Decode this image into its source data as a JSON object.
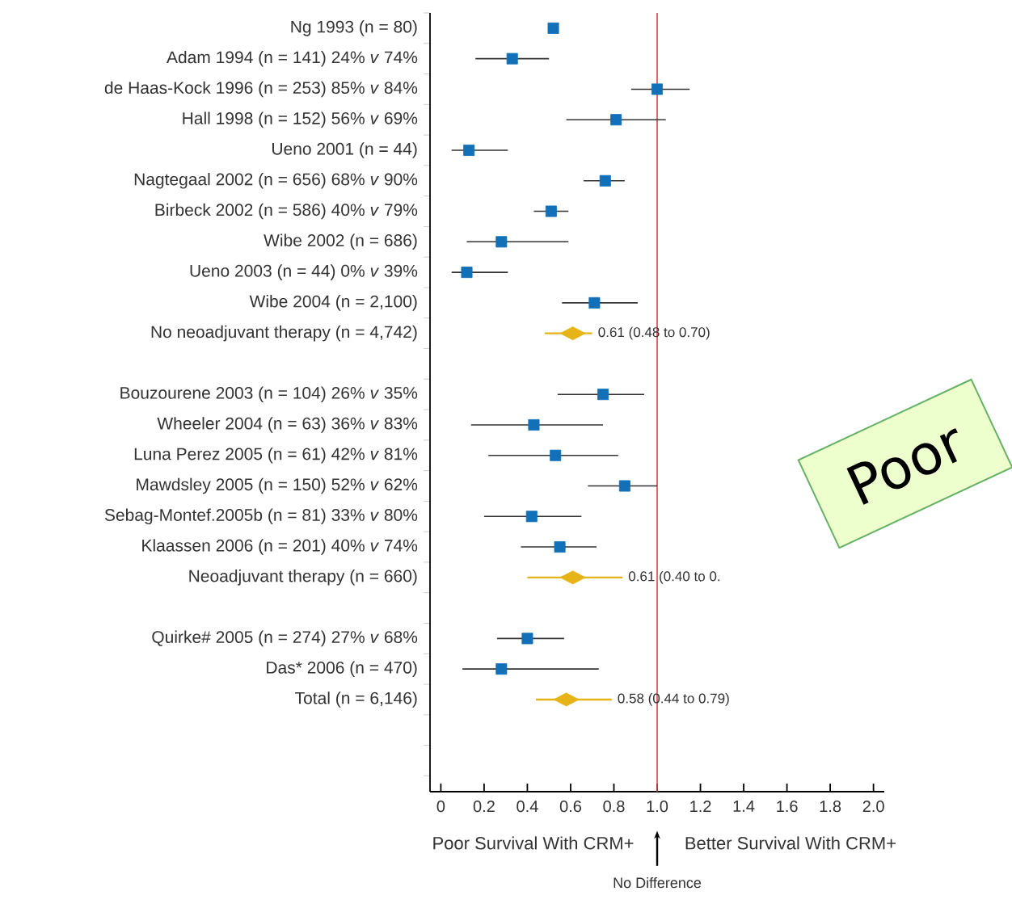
{
  "chart_data": {
    "type": "scatter",
    "orientation": "horizontal",
    "categories": [
      "Ng 1993 (n = 80)",
      "Adam 1994 (n = 141) 24% *v* 74%",
      "de Haas-Kock 1996 (n = 253) 85% *v* 84%",
      "Hall 1998 (n = 152) 56% *v* 69%",
      "Ueno 2001 (n = 44)",
      "Nagtegaal 2002 (n = 656) 68% *v* 90%",
      "Birbeck 2002 (n = 586) 40% *v* 79%",
      "Wibe 2002 (n = 686)",
      "Ueno 2003 (n = 44) 0% *v* 39%",
      "Wibe 2004 (n = 2,100)",
      "No neoadjuvant therapy (n = 4,742)",
      null,
      "Bouzourene 2003 (n = 104) 26% *v* 35%",
      "Wheeler 2004 (n = 63) 36% *v* 83%",
      "Luna Perez 2005 (n = 61) 42% *v* 81%",
      "Mawdsley 2005 (n = 150) 52% *v* 62%",
      "Sebag-Montef.2005b (n = 81) 33% *v* 80%",
      "Klaassen 2006 (n = 201) 40% *v* 74%",
      "Neoadjuvant therapy (n = 660)",
      null,
      "Quirke# 2005 (n = 274) 27% *v* 68%",
      "Das* 2006 (n = 470)",
      "Total (n = 6,146)",
      null,
      null
    ],
    "series": [
      {
        "marker": "square",
        "color": "#1170b8",
        "values": [
          0.52,
          0.33,
          1.0,
          0.81,
          0.13,
          0.76,
          0.51,
          0.28,
          0.12,
          0.71,
          null,
          null,
          0.75,
          0.43,
          0.53,
          0.85,
          0.42,
          0.55,
          null,
          null,
          0.4,
          0.28,
          null,
          null,
          null
        ],
        "errors": [
          null,
          [
            0.16,
            0.5
          ],
          [
            0.88,
            1.15
          ],
          [
            0.58,
            1.04
          ],
          [
            0.05,
            0.31
          ],
          [
            0.66,
            0.85
          ],
          [
            0.43,
            0.59
          ],
          [
            0.12,
            0.59
          ],
          [
            0.05,
            0.31
          ],
          [
            0.56,
            0.91
          ],
          null,
          null,
          [
            0.54,
            0.94
          ],
          [
            0.14,
            0.75
          ],
          [
            0.22,
            0.82
          ],
          [
            0.68,
            1.0
          ],
          [
            0.2,
            0.65
          ],
          [
            0.37,
            0.72
          ],
          null,
          null,
          [
            0.26,
            0.57
          ],
          [
            0.1,
            0.73
          ],
          null,
          null,
          null
        ]
      },
      {
        "marker": "diamond",
        "color": "#e6b416",
        "values": [
          null,
          null,
          null,
          null,
          null,
          null,
          null,
          null,
          null,
          null,
          0.61,
          null,
          null,
          null,
          null,
          null,
          null,
          null,
          0.61,
          null,
          null,
          null,
          0.58,
          null,
          null
        ],
        "errors": [
          null,
          null,
          null,
          null,
          null,
          null,
          null,
          null,
          null,
          null,
          [
            0.48,
            0.7
          ],
          null,
          null,
          null,
          null,
          null,
          null,
          null,
          [
            0.4,
            0.84
          ],
          null,
          null,
          null,
          [
            0.44,
            0.79
          ],
          null,
          null
        ],
        "value_labels": [
          null,
          null,
          null,
          null,
          null,
          null,
          null,
          null,
          null,
          null,
          "0.61 (0.48 to 0.70)",
          null,
          null,
          null,
          null,
          null,
          null,
          null,
          "0.61 (0.40 to 0.",
          null,
          null,
          null,
          "0.58 (0.44 to 0.79)",
          null,
          null
        ]
      }
    ],
    "xlim": [
      -0.05,
      2.05
    ],
    "xticks": [
      0,
      0.2,
      0.4,
      0.6,
      0.8,
      {
        "value": 1.0,
        "label": "1.0"
      },
      1.2,
      1.4,
      1.6,
      1.8,
      {
        "value": 2.0,
        "label": "2.0"
      }
    ],
    "ref_lines": [
      {
        "axis": "x",
        "value": 1.0,
        "color": "#e04040"
      }
    ],
    "annotations": [
      "Poor Survival With CRM+",
      "Better Survival With CRM+",
      "No Difference",
      "Poor"
    ]
  }
}
